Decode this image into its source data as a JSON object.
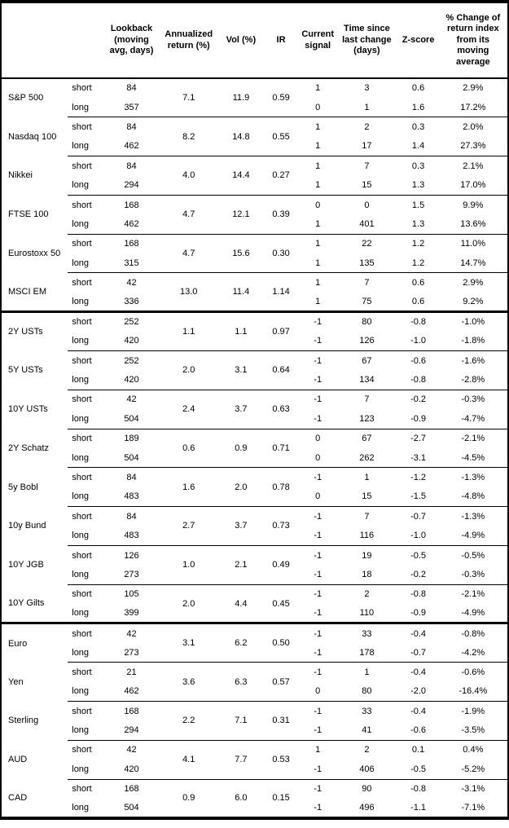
{
  "header": {
    "asset": "",
    "period": "",
    "lookback": "Lookback\n(moving\navg, days)",
    "annualized_return": "Annualized\nreturn (%)",
    "vol": "Vol (%)",
    "ir": "IR",
    "signal": "Current\nsignal",
    "time_since": "Time since\nlast change\n(days)",
    "z_score": "Z-score",
    "pct_change": "% Change of\nreturn index\nfrom its\nmoving\naverage"
  },
  "period_labels": {
    "short": "short",
    "long": "long"
  },
  "groups": [
    {
      "assets": [
        {
          "name": "S&P 500",
          "annualized_return": "7.1",
          "vol": "11.9",
          "ir": "0.59",
          "short": {
            "lookback": "84",
            "signal": "1",
            "time_since": "3",
            "z_score": "0.6",
            "pct_change": "2.9%"
          },
          "long": {
            "lookback": "357",
            "signal": "0",
            "time_since": "1",
            "z_score": "1.6",
            "pct_change": "17.2%"
          }
        },
        {
          "name": "Nasdaq 100",
          "annualized_return": "8.2",
          "vol": "14.8",
          "ir": "0.55",
          "short": {
            "lookback": "84",
            "signal": "1",
            "time_since": "2",
            "z_score": "0.3",
            "pct_change": "2.0%"
          },
          "long": {
            "lookback": "462",
            "signal": "1",
            "time_since": "17",
            "z_score": "1.4",
            "pct_change": "27.3%"
          }
        },
        {
          "name": "Nikkei",
          "annualized_return": "4.0",
          "vol": "14.4",
          "ir": "0.27",
          "short": {
            "lookback": "84",
            "signal": "1",
            "time_since": "7",
            "z_score": "0.3",
            "pct_change": "2.1%"
          },
          "long": {
            "lookback": "294",
            "signal": "1",
            "time_since": "15",
            "z_score": "1.3",
            "pct_change": "17.0%"
          }
        },
        {
          "name": "FTSE 100",
          "annualized_return": "4.7",
          "vol": "12.1",
          "ir": "0.39",
          "short": {
            "lookback": "168",
            "signal": "0",
            "time_since": "0",
            "z_score": "1.5",
            "pct_change": "9.9%"
          },
          "long": {
            "lookback": "462",
            "signal": "1",
            "time_since": "401",
            "z_score": "1.3",
            "pct_change": "13.6%"
          }
        },
        {
          "name": "Eurostoxx 50",
          "annualized_return": "4.7",
          "vol": "15.6",
          "ir": "0.30",
          "short": {
            "lookback": "168",
            "signal": "1",
            "time_since": "22",
            "z_score": "1.2",
            "pct_change": "11.0%"
          },
          "long": {
            "lookback": "315",
            "signal": "1",
            "time_since": "135",
            "z_score": "1.2",
            "pct_change": "14.7%"
          }
        },
        {
          "name": "MSCI EM",
          "annualized_return": "13.0",
          "vol": "11.4",
          "ir": "1.14",
          "short": {
            "lookback": "42",
            "signal": "1",
            "time_since": "7",
            "z_score": "0.6",
            "pct_change": "2.9%"
          },
          "long": {
            "lookback": "336",
            "signal": "1",
            "time_since": "75",
            "z_score": "0.6",
            "pct_change": "9.2%"
          }
        }
      ]
    },
    {
      "assets": [
        {
          "name": "2Y USTs",
          "annualized_return": "1.1",
          "vol": "1.1",
          "ir": "0.97",
          "short": {
            "lookback": "252",
            "signal": "-1",
            "time_since": "80",
            "z_score": "-0.8",
            "pct_change": "-1.0%"
          },
          "long": {
            "lookback": "420",
            "signal": "-1",
            "time_since": "126",
            "z_score": "-1.0",
            "pct_change": "-1.8%"
          }
        },
        {
          "name": "5Y USTs",
          "annualized_return": "2.0",
          "vol": "3.1",
          "ir": "0.64",
          "short": {
            "lookback": "252",
            "signal": "-1",
            "time_since": "67",
            "z_score": "-0.6",
            "pct_change": "-1.6%"
          },
          "long": {
            "lookback": "420",
            "signal": "-1",
            "time_since": "134",
            "z_score": "-0.8",
            "pct_change": "-2.8%"
          }
        },
        {
          "name": "10Y USTs",
          "annualized_return": "2.4",
          "vol": "3.7",
          "ir": "0.63",
          "short": {
            "lookback": "42",
            "signal": "-1",
            "time_since": "7",
            "z_score": "-0.2",
            "pct_change": "-0.3%"
          },
          "long": {
            "lookback": "504",
            "signal": "-1",
            "time_since": "123",
            "z_score": "-0.9",
            "pct_change": "-4.7%"
          }
        },
        {
          "name": "2Y Schatz",
          "annualized_return": "0.6",
          "vol": "0.9",
          "ir": "0.71",
          "short": {
            "lookback": "189",
            "signal": "0",
            "time_since": "67",
            "z_score": "-2.7",
            "pct_change": "-2.1%"
          },
          "long": {
            "lookback": "504",
            "signal": "0",
            "time_since": "262",
            "z_score": "-3.1",
            "pct_change": "-4.5%"
          }
        },
        {
          "name": "5y Bobl",
          "annualized_return": "1.6",
          "vol": "2.0",
          "ir": "0.78",
          "short": {
            "lookback": "84",
            "signal": "-1",
            "time_since": "1",
            "z_score": "-1.2",
            "pct_change": "-1.3%"
          },
          "long": {
            "lookback": "483",
            "signal": "0",
            "time_since": "15",
            "z_score": "-1.5",
            "pct_change": "-4.8%"
          }
        },
        {
          "name": "10y Bund",
          "annualized_return": "2.7",
          "vol": "3.7",
          "ir": "0.73",
          "short": {
            "lookback": "84",
            "signal": "-1",
            "time_since": "7",
            "z_score": "-0.7",
            "pct_change": "-1.3%"
          },
          "long": {
            "lookback": "483",
            "signal": "-1",
            "time_since": "116",
            "z_score": "-1.0",
            "pct_change": "-4.9%"
          }
        },
        {
          "name": "10Y JGB",
          "annualized_return": "1.0",
          "vol": "2.1",
          "ir": "0.49",
          "short": {
            "lookback": "126",
            "signal": "-1",
            "time_since": "19",
            "z_score": "-0.5",
            "pct_change": "-0.5%"
          },
          "long": {
            "lookback": "273",
            "signal": "-1",
            "time_since": "18",
            "z_score": "-0.2",
            "pct_change": "-0.3%"
          }
        },
        {
          "name": "10Y Gilts",
          "annualized_return": "2.0",
          "vol": "4.4",
          "ir": "0.45",
          "short": {
            "lookback": "105",
            "signal": "-1",
            "time_since": "2",
            "z_score": "-0.8",
            "pct_change": "-2.1%"
          },
          "long": {
            "lookback": "399",
            "signal": "-1",
            "time_since": "110",
            "z_score": "-0.9",
            "pct_change": "-4.9%"
          }
        }
      ]
    },
    {
      "assets": [
        {
          "name": "Euro",
          "annualized_return": "3.1",
          "vol": "6.2",
          "ir": "0.50",
          "short": {
            "lookback": "42",
            "signal": "-1",
            "time_since": "33",
            "z_score": "-0.4",
            "pct_change": "-0.8%"
          },
          "long": {
            "lookback": "273",
            "signal": "-1",
            "time_since": "178",
            "z_score": "-0.7",
            "pct_change": "-4.2%"
          }
        },
        {
          "name": "Yen",
          "annualized_return": "3.6",
          "vol": "6.3",
          "ir": "0.57",
          "short": {
            "lookback": "21",
            "signal": "-1",
            "time_since": "1",
            "z_score": "-0.4",
            "pct_change": "-0.6%"
          },
          "long": {
            "lookback": "462",
            "signal": "0",
            "time_since": "80",
            "z_score": "-2.0",
            "pct_change": "-16.4%"
          }
        },
        {
          "name": "Sterling",
          "annualized_return": "2.2",
          "vol": "7.1",
          "ir": "0.31",
          "short": {
            "lookback": "168",
            "signal": "-1",
            "time_since": "33",
            "z_score": "-0.4",
            "pct_change": "-1.9%"
          },
          "long": {
            "lookback": "294",
            "signal": "-1",
            "time_since": "41",
            "z_score": "-0.6",
            "pct_change": "-3.5%"
          }
        },
        {
          "name": "AUD",
          "annualized_return": "4.1",
          "vol": "7.7",
          "ir": "0.53",
          "short": {
            "lookback": "42",
            "signal": "1",
            "time_since": "2",
            "z_score": "0.1",
            "pct_change": "0.4%"
          },
          "long": {
            "lookback": "420",
            "signal": "-1",
            "time_since": "406",
            "z_score": "-0.5",
            "pct_change": "-5.2%"
          }
        },
        {
          "name": "CAD",
          "annualized_return": "0.9",
          "vol": "6.0",
          "ir": "0.15",
          "short": {
            "lookback": "168",
            "signal": "-1",
            "time_since": "90",
            "z_score": "-0.8",
            "pct_change": "-3.1%"
          },
          "long": {
            "lookback": "504",
            "signal": "-1",
            "time_since": "496",
            "z_score": "-1.1",
            "pct_change": "-7.1%"
          }
        }
      ]
    }
  ]
}
